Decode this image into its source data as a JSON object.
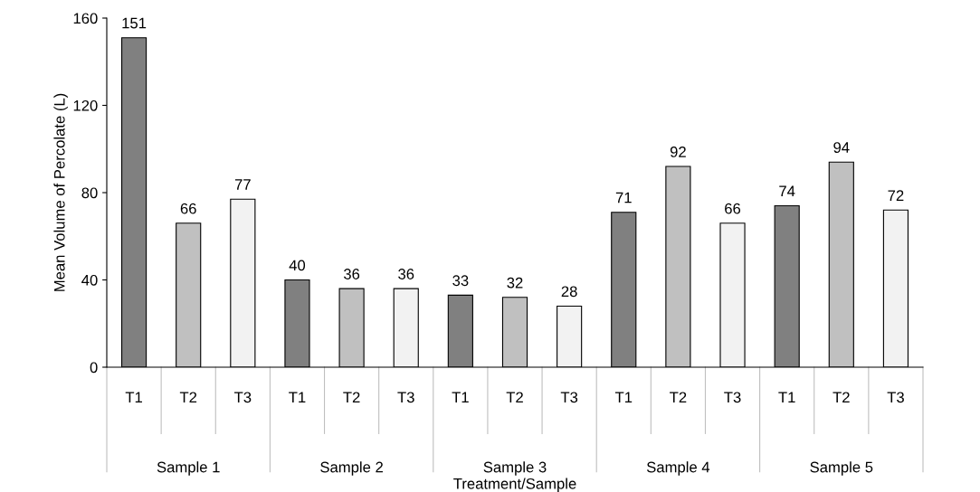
{
  "chart_data": {
    "type": "bar",
    "xlabel": "Treatment/Sample",
    "ylabel": "Mean Volume of Percolate (L)",
    "categories": [
      "Sample 1",
      "Sample 2",
      "Sample 3",
      "Sample 4",
      "Sample 5"
    ],
    "series": [
      {
        "name": "T1",
        "color": "#808080",
        "values": [
          151,
          40,
          33,
          71,
          74
        ]
      },
      {
        "name": "T2",
        "color": "#c0c0c0",
        "values": [
          66,
          36,
          32,
          92,
          94
        ]
      },
      {
        "name": "T3",
        "color": "#f2f2f2",
        "values": [
          77,
          36,
          28,
          66,
          72
        ]
      }
    ],
    "ylim": [
      0,
      160
    ],
    "yticks": [
      0,
      40,
      80,
      120,
      160
    ],
    "data_labels": true,
    "grid": false,
    "legend": false
  }
}
